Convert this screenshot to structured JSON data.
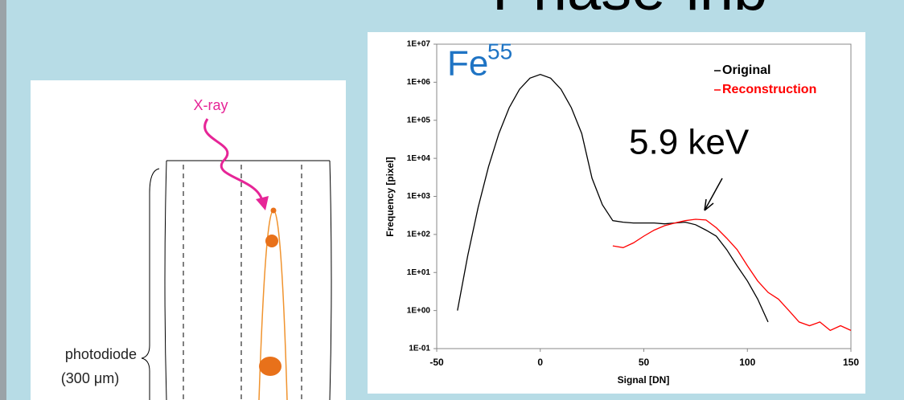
{
  "slide": {
    "title": "Phase-inb"
  },
  "diagram": {
    "xray_label": "X-ray",
    "photodiode_label": "photodiode",
    "thickness_label": "(300 μm)"
  },
  "chart_data": {
    "type": "line",
    "x_label": "Signal [DN]",
    "y_label": "Frequency [pixel]",
    "annotation_element": "Fe",
    "annotation_isotope": "55",
    "annotation_peak": "5.9 keV",
    "yscale": "log",
    "legend": "top right",
    "grid": false,
    "x": [
      -40,
      -35,
      -30,
      -25,
      -20,
      -15,
      -10,
      -5,
      0,
      5,
      10,
      15,
      20,
      25,
      30,
      35,
      40,
      45,
      50,
      55,
      60,
      65,
      70,
      75,
      80,
      85,
      90,
      95,
      100,
      105,
      110,
      115,
      120,
      125,
      130,
      135,
      140,
      145,
      150
    ],
    "series": [
      {
        "name": "Original",
        "color": "#000000",
        "values": [
          1,
          28,
          515,
          6000,
          45000,
          214000,
          655000,
          1280000,
          1600000,
          1280000,
          655000,
          214000,
          45000,
          3000,
          600,
          230,
          210,
          200,
          200,
          200,
          190,
          200,
          210,
          180,
          130,
          90,
          40,
          15,
          6,
          2,
          0.5,
          null,
          null,
          null,
          null,
          null,
          null,
          null,
          null
        ]
      },
      {
        "name": "Reconstruction",
        "color": "#ff0000",
        "values": [
          null,
          null,
          null,
          null,
          null,
          null,
          null,
          null,
          null,
          null,
          null,
          null,
          null,
          null,
          null,
          50,
          45,
          60,
          90,
          130,
          170,
          200,
          230,
          250,
          240,
          150,
          80,
          40,
          15,
          6,
          3,
          2,
          1,
          0.5,
          0.4,
          0.5,
          0.3,
          0.4,
          0.3
        ]
      }
    ],
    "xlim": [
      -50,
      150
    ],
    "xticks": [
      -50,
      0,
      50,
      100,
      150
    ],
    "ylim": [
      0.1,
      10000000
    ],
    "yticks": [
      {
        "value": 0.1,
        "label": "1E-01"
      },
      {
        "value": 1,
        "label": "1E+00"
      },
      {
        "value": 10,
        "label": "1E+01"
      },
      {
        "value": 100,
        "label": "1E+02"
      },
      {
        "value": 1000,
        "label": "1E+03"
      },
      {
        "value": 10000,
        "label": "1E+04"
      },
      {
        "value": 100000,
        "label": "1E+05"
      },
      {
        "value": 1000000,
        "label": "1E+06"
      },
      {
        "value": 10000000,
        "label": "1E+07"
      }
    ]
  }
}
